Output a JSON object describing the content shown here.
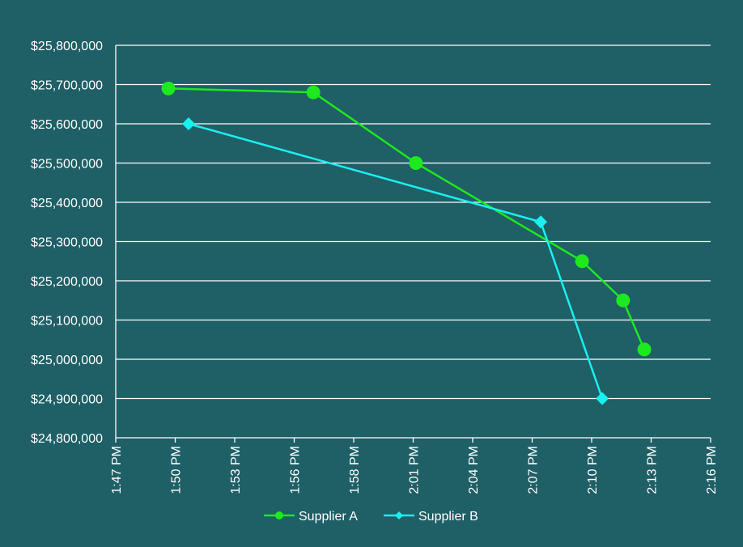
{
  "chart_data": {
    "type": "line",
    "title": "",
    "xlabel": "",
    "ylabel": "",
    "x_tick_labels": [
      "1:47 PM",
      "1:50 PM",
      "1:53 PM",
      "1:56 PM",
      "1:58 PM",
      "2:01 PM",
      "2:04 PM",
      "2:07 PM",
      "2:10 PM",
      "2:13 PM",
      "2:16 PM"
    ],
    "xlim": [
      "1:47:00 PM",
      "2:16:00 PM"
    ],
    "y_tick_labels": [
      "$24,800,000",
      "$24,900,000",
      "$25,000,000",
      "$25,100,000",
      "$25,200,000",
      "$25,300,000",
      "$25,400,000",
      "$25,500,000",
      "$25,600,000",
      "$25,700,000",
      "$25,800,000"
    ],
    "ylim": [
      24800000,
      25800000
    ],
    "grid": "horizontal",
    "legend_position": "bottom",
    "series": [
      {
        "name": "Supplier A",
        "color": "#1ee81e",
        "marker": "circle",
        "x": [
          "1:49:34 PM",
          "1:56:38 PM",
          "2:01:38 PM",
          "2:09:44 PM",
          "2:11:44 PM",
          "2:12:46 PM"
        ],
        "values": [
          25690000,
          25680000,
          25500000,
          25250000,
          25150000,
          25025000
        ]
      },
      {
        "name": "Supplier B",
        "color": "#19f0f0",
        "marker": "diamond",
        "x": [
          "1:50:33 PM",
          "2:07:43 PM",
          "2:10:43 PM"
        ],
        "values": [
          25600000,
          25350000,
          24900000
        ]
      }
    ]
  }
}
